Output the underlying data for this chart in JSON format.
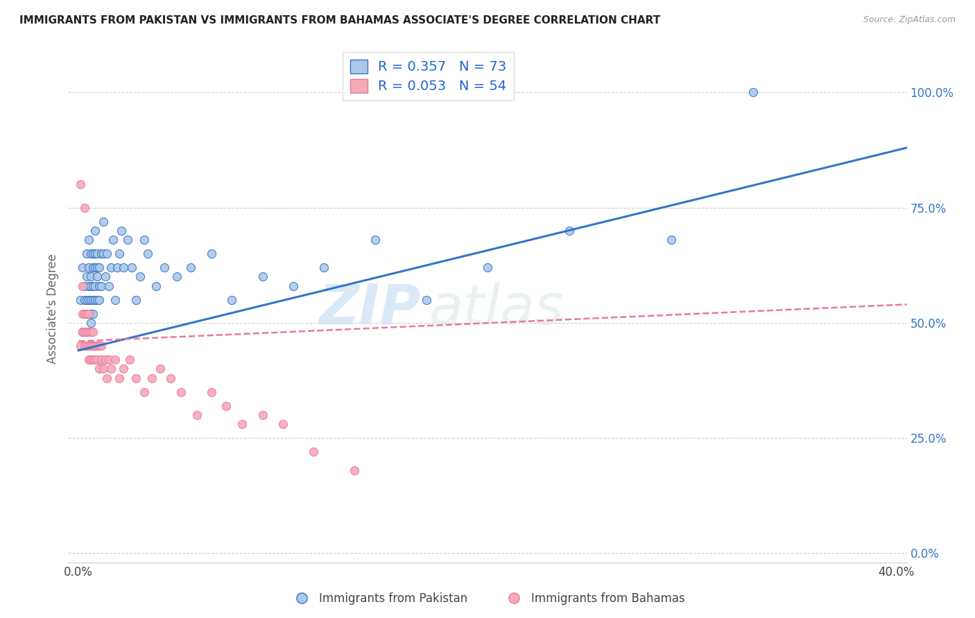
{
  "title": "IMMIGRANTS FROM PAKISTAN VS IMMIGRANTS FROM BAHAMAS ASSOCIATE'S DEGREE CORRELATION CHART",
  "source": "Source: ZipAtlas.com",
  "xlabel_ticks": [
    "0.0%",
    "",
    "",
    "",
    "40.0%"
  ],
  "xlabel_tick_vals": [
    0.0,
    0.1,
    0.2,
    0.3,
    0.4
  ],
  "ylabel": "Associate's Degree",
  "ylabel_ticks": [
    "0.0%",
    "25.0%",
    "50.0%",
    "75.0%",
    "100.0%"
  ],
  "ylabel_tick_vals": [
    0.0,
    0.25,
    0.5,
    0.75,
    1.0
  ],
  "xlim": [
    -0.005,
    0.405
  ],
  "ylim": [
    -0.02,
    1.08
  ],
  "pakistan_R": 0.357,
  "pakistan_N": 73,
  "bahamas_R": 0.053,
  "bahamas_N": 54,
  "pakistan_color": "#adc8e8",
  "bahamas_color": "#f5aaba",
  "pakistan_line_color": "#3374c8",
  "bahamas_line_color": "#e87898",
  "legend_label_pakistan": "Immigrants from Pakistan",
  "legend_label_bahamas": "Immigrants from Bahamas",
  "watermark_zip": "ZIP",
  "watermark_atlas": "atlas",
  "pakistan_x": [
    0.001,
    0.002,
    0.002,
    0.003,
    0.003,
    0.003,
    0.004,
    0.004,
    0.004,
    0.004,
    0.005,
    0.005,
    0.005,
    0.005,
    0.005,
    0.006,
    0.006,
    0.006,
    0.006,
    0.006,
    0.006,
    0.007,
    0.007,
    0.007,
    0.007,
    0.007,
    0.008,
    0.008,
    0.008,
    0.008,
    0.008,
    0.009,
    0.009,
    0.009,
    0.009,
    0.01,
    0.01,
    0.01,
    0.011,
    0.011,
    0.012,
    0.012,
    0.013,
    0.014,
    0.015,
    0.016,
    0.017,
    0.018,
    0.019,
    0.02,
    0.021,
    0.022,
    0.024,
    0.026,
    0.028,
    0.03,
    0.032,
    0.034,
    0.038,
    0.042,
    0.048,
    0.055,
    0.065,
    0.075,
    0.09,
    0.105,
    0.12,
    0.145,
    0.17,
    0.2,
    0.24,
    0.29,
    0.33
  ],
  "pakistan_y": [
    0.55,
    0.62,
    0.48,
    0.55,
    0.58,
    0.52,
    0.55,
    0.6,
    0.65,
    0.48,
    0.55,
    0.58,
    0.62,
    0.52,
    0.68,
    0.55,
    0.6,
    0.65,
    0.5,
    0.58,
    0.52,
    0.55,
    0.62,
    0.65,
    0.58,
    0.52,
    0.58,
    0.62,
    0.55,
    0.65,
    0.7,
    0.6,
    0.65,
    0.55,
    0.62,
    0.58,
    0.55,
    0.62,
    0.58,
    0.65,
    0.65,
    0.72,
    0.6,
    0.65,
    0.58,
    0.62,
    0.68,
    0.55,
    0.62,
    0.65,
    0.7,
    0.62,
    0.68,
    0.62,
    0.55,
    0.6,
    0.68,
    0.65,
    0.58,
    0.62,
    0.6,
    0.62,
    0.65,
    0.55,
    0.6,
    0.58,
    0.62,
    0.68,
    0.55,
    0.62,
    0.7,
    0.68,
    1.0
  ],
  "bahamas_x": [
    0.001,
    0.001,
    0.002,
    0.002,
    0.002,
    0.003,
    0.003,
    0.003,
    0.003,
    0.004,
    0.004,
    0.004,
    0.004,
    0.005,
    0.005,
    0.005,
    0.005,
    0.006,
    0.006,
    0.006,
    0.007,
    0.007,
    0.007,
    0.008,
    0.008,
    0.009,
    0.009,
    0.01,
    0.01,
    0.011,
    0.011,
    0.012,
    0.013,
    0.014,
    0.015,
    0.016,
    0.018,
    0.02,
    0.022,
    0.025,
    0.028,
    0.032,
    0.036,
    0.04,
    0.045,
    0.05,
    0.058,
    0.065,
    0.072,
    0.08,
    0.09,
    0.1,
    0.115,
    0.135
  ],
  "bahamas_y": [
    0.45,
    0.8,
    0.52,
    0.58,
    0.48,
    0.45,
    0.52,
    0.48,
    0.75,
    0.45,
    0.48,
    0.52,
    0.45,
    0.48,
    0.52,
    0.45,
    0.42,
    0.45,
    0.48,
    0.42,
    0.45,
    0.48,
    0.42,
    0.45,
    0.42,
    0.45,
    0.42,
    0.4,
    0.45,
    0.42,
    0.45,
    0.4,
    0.42,
    0.38,
    0.42,
    0.4,
    0.42,
    0.38,
    0.4,
    0.42,
    0.38,
    0.35,
    0.38,
    0.4,
    0.38,
    0.35,
    0.3,
    0.35,
    0.32,
    0.28,
    0.3,
    0.28,
    0.22,
    0.18
  ],
  "pak_trend_x0": 0.0,
  "pak_trend_x1": 0.405,
  "pak_trend_y0": 0.44,
  "pak_trend_y1": 0.88,
  "bah_trend_x0": 0.0,
  "bah_trend_x1": 0.405,
  "bah_trend_y0": 0.46,
  "bah_trend_y1": 0.54
}
